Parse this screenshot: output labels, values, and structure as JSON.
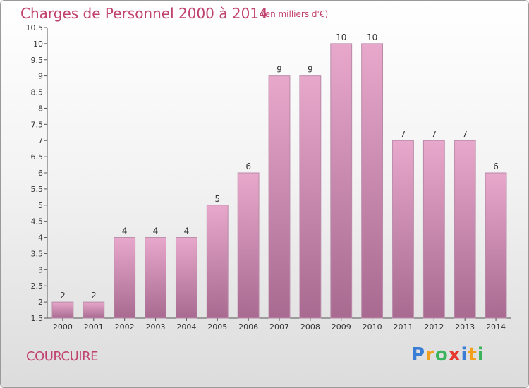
{
  "title": "Charges de Personnel 2000 à 2014",
  "unit_note": "(en milliers d'€)",
  "town": "COURCUIRE",
  "brand": {
    "letters": [
      "P",
      "r",
      "o",
      "x",
      "i",
      "t",
      "i"
    ],
    "colors": [
      "#3a7dd4",
      "#f2a01c",
      "#3bb35a",
      "#e63a2e",
      "#3a7dd4",
      "#f2a01c",
      "#3bb35a"
    ]
  },
  "colors": {
    "accent": "#c0416e",
    "bar_top": "#e8a8cc",
    "bar_bottom": "#a86a90",
    "bar_edge": "#b98aa8"
  },
  "chart_data": {
    "type": "bar",
    "categories": [
      "2000",
      "2001",
      "2002",
      "2003",
      "2004",
      "2005",
      "2006",
      "2007",
      "2008",
      "2009",
      "2010",
      "2011",
      "2012",
      "2013",
      "2014"
    ],
    "values": [
      2,
      2,
      4,
      4,
      4,
      5,
      6,
      9,
      9,
      10,
      10,
      7,
      7,
      7,
      6
    ],
    "data_labels": [
      "2",
      "2",
      "4",
      "4",
      "4",
      "5",
      "6",
      "9",
      "9",
      "10",
      "10",
      "7",
      "7",
      "7",
      "6"
    ],
    "yticks": [
      "1.5",
      "2",
      "2.5",
      "3",
      "3.5",
      "4",
      "4.5",
      "5",
      "5.5",
      "6",
      "6.5",
      "7",
      "7.5",
      "8",
      "8.5",
      "9",
      "9.5",
      "10",
      "10.5"
    ],
    "ylim": [
      1.5,
      10.5
    ],
    "grid": false,
    "legend": "none"
  }
}
